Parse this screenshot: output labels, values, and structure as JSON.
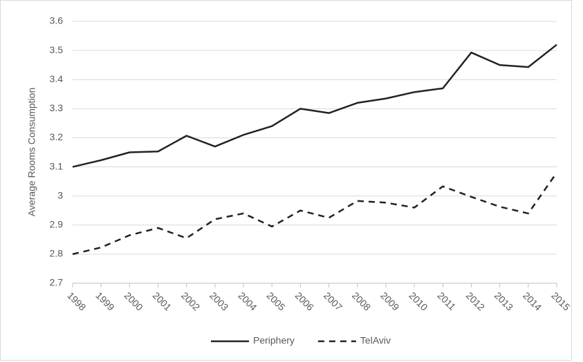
{
  "chart_data": {
    "type": "line",
    "y_label": "Average Rooms Consumption",
    "categories": [
      "1998",
      "1999",
      "2000",
      "2001",
      "2002",
      "2003",
      "2004",
      "2005",
      "2006",
      "2007",
      "2008",
      "2009",
      "2010",
      "2011",
      "2012",
      "2013",
      "2014",
      "2015"
    ],
    "series": [
      {
        "name": "Periphery",
        "color": "#222222",
        "dash": "solid",
        "values": [
          3.1,
          3.123,
          3.15,
          3.153,
          3.207,
          3.17,
          3.21,
          3.24,
          3.3,
          3.285,
          3.32,
          3.335,
          3.357,
          3.37,
          3.493,
          3.45,
          3.443,
          3.52
        ]
      },
      {
        "name": "TelAviv",
        "color": "#222222",
        "dash": "dashed",
        "values": [
          2.8,
          2.823,
          2.865,
          2.89,
          2.855,
          2.92,
          2.94,
          2.895,
          2.95,
          2.925,
          2.983,
          2.977,
          2.96,
          3.033,
          2.997,
          2.963,
          2.94,
          3.08
        ]
      }
    ],
    "ylim": [
      2.7,
      3.6
    ],
    "yticks": [
      2.7,
      2.8,
      2.9,
      3,
      3.1,
      3.2,
      3.3,
      3.4,
      3.5,
      3.6
    ],
    "grid": true,
    "legend": "bottom"
  }
}
